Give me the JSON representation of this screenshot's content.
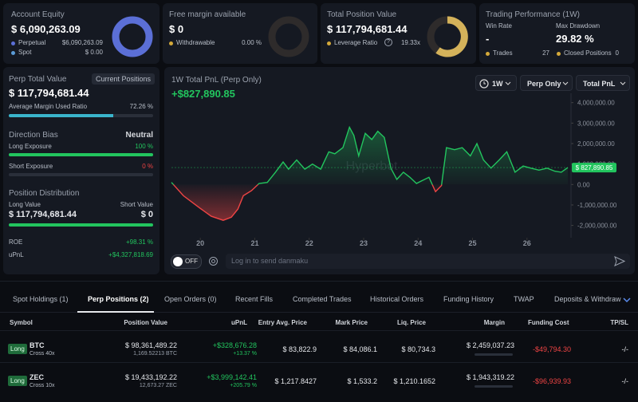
{
  "cards": [
    {
      "title": "Account Equity",
      "value": "$ 6,090,263.09",
      "rows": [
        [
          "Perpetual",
          "$6,090,263.09"
        ],
        [
          "Spot",
          "$ 0.00"
        ]
      ]
    },
    {
      "title": "Free margin available",
      "value": "$ 0",
      "rows": [
        [
          "Withdrawable",
          "0.00 %"
        ]
      ]
    },
    {
      "title": "Total Position Value",
      "value": "$ 117,794,681.44",
      "rows": [
        [
          "Leverage Ratio",
          "19.33x"
        ]
      ]
    },
    {
      "title": "Trading Performance (1W)",
      "stats": [
        [
          "Win Rate",
          "-"
        ],
        [
          "Max Drawdown",
          "29.82 %"
        ]
      ],
      "rows": [
        [
          "Trades",
          "27"
        ],
        [
          "Closed Positions",
          "0"
        ]
      ]
    }
  ],
  "left_panel": {
    "title": "Perp Total Value",
    "badge": "Current Positions",
    "value": "$ 117,794,681.44",
    "margin_ratio_label": "Average Margin Used Ratio",
    "margin_ratio": {
      "value": 72.26,
      "label": "72.26 %"
    },
    "bias_title": "Direction Bias",
    "bias": "Neutral",
    "long_label": "Long Exposure",
    "long": {
      "value": 100,
      "label": "100 %"
    },
    "short_label": "Short Exposure",
    "short": {
      "value": 0,
      "label": "0 %"
    },
    "distribution_title": "Position Distribution",
    "long_value_label": "Long Value",
    "short_value_label": "Short Value",
    "long_value": "$ 117,794,681.44",
    "short_value": "$ 0",
    "roe_label": "ROE",
    "roe": "+98.31 %",
    "upnl_label": "uPnL",
    "upnl": "+$4,327,818.69"
  },
  "chart_panel": {
    "title": "1W Total PnL (Perp Only)",
    "value": "+$827,890.85",
    "controls": [
      "1W",
      "Perp Only",
      "Total PnL"
    ],
    "watermark": "Hyperbot",
    "toggle": "OFF",
    "input_placeholder": "Log in to send danmaku"
  },
  "chart_data": {
    "type": "line",
    "color_up": "#22c55e",
    "color_down": "#ef4444",
    "x": [
      19.47,
      19.69,
      19.99,
      20.2,
      20.42,
      20.57,
      20.69,
      20.79,
      20.94,
      21.08,
      21.23,
      21.38,
      21.52,
      21.62,
      21.77,
      21.92,
      22.06,
      22.21,
      22.36,
      22.47,
      22.62,
      22.74,
      22.82,
      22.91,
      23.03,
      23.15,
      23.26,
      23.38,
      23.5,
      23.61,
      23.73,
      23.85,
      23.97,
      24.08,
      24.2,
      24.32,
      24.43,
      24.52,
      24.67,
      24.81,
      24.96,
      25.08,
      25.2,
      25.34,
      25.49,
      25.63,
      25.78,
      25.93,
      26.07,
      26.22,
      26.37,
      26.51,
      26.63,
      26.75
    ],
    "values": [
      100000,
      -550000,
      -1150000,
      -1550000,
      -1750000,
      -1600000,
      -1200000,
      -550000,
      -300000,
      50000,
      100000,
      600000,
      1100000,
      750000,
      1200000,
      750000,
      1000000,
      750000,
      1600000,
      1500000,
      1800000,
      2800000,
      2400000,
      1400000,
      2500000,
      2200000,
      2600000,
      2300000,
      800000,
      250000,
      600000,
      350000,
      50000,
      200000,
      350000,
      -350000,
      -50000,
      1800000,
      1700000,
      1800000,
      1400000,
      2000000,
      1200000,
      800000,
      1200000,
      1600000,
      600000,
      900000,
      800000,
      700000,
      800000,
      650000,
      600000,
      827890.85
    ],
    "last_value_label": "$ 827,890.85",
    "xlim": [
      19.47,
      26.75
    ],
    "xticks": [
      20,
      21,
      22,
      23,
      24,
      25,
      26
    ],
    "ylim": [
      -2600000,
      4300000
    ],
    "yticks": [
      {
        "value": 4000000,
        "label": "4,000,000.00"
      },
      {
        "value": 3000000,
        "label": "3,000,000.00"
      },
      {
        "value": 2000000,
        "label": "2,000,000.00"
      },
      {
        "value": 1000000,
        "label": "1,000,000.00"
      },
      {
        "value": 0,
        "label": "0.00"
      },
      {
        "value": -1000000,
        "label": "-1,000,000.00"
      },
      {
        "value": -2000000,
        "label": "-2,000,000.00"
      }
    ]
  },
  "tabs": {
    "items": [
      "Spot Holdings (1)",
      "Perp Positions (2)",
      "Open Orders (0)",
      "Recent Fills",
      "Completed Trades",
      "Historical Orders",
      "Funding History",
      "TWAP",
      "Deposits & Withdraw"
    ],
    "active": 1
  },
  "table": {
    "columns": [
      "Symbol",
      "Position Value",
      "uPnL",
      "Entry Avg. Price",
      "Mark Price",
      "Liq. Price",
      "Margin",
      "Funding Cost",
      "TP/SL"
    ],
    "rows": [
      {
        "side": "Long",
        "symbol": "BTC",
        "mode": "Cross 40x",
        "position_value": "$ 98,361,489.22",
        "size": "1,169.52213 BTC",
        "upnl": "+$328,676.28",
        "upnl_pct": "+13.37 %",
        "entry": "$ 83,822.9",
        "mark": "$ 84,086.1",
        "liq": "$ 80,734.3",
        "margin": "$ 2,459,037.23",
        "funding": "-$49,794.30",
        "tpsl": "-/-"
      },
      {
        "side": "Long",
        "symbol": "ZEC",
        "mode": "Cross 10x",
        "position_value": "$ 19,433,192.22",
        "size": "12,673.27 ZEC",
        "upnl": "+$3,999,142.41",
        "upnl_pct": "+205.79 %",
        "entry": "$ 1,217.8427",
        "mark": "$ 1,533.2",
        "liq": "$ 1,210.1652",
        "margin": "$ 1,943,319.22",
        "funding": "-$96,939.93",
        "tpsl": "-/-"
      }
    ]
  }
}
